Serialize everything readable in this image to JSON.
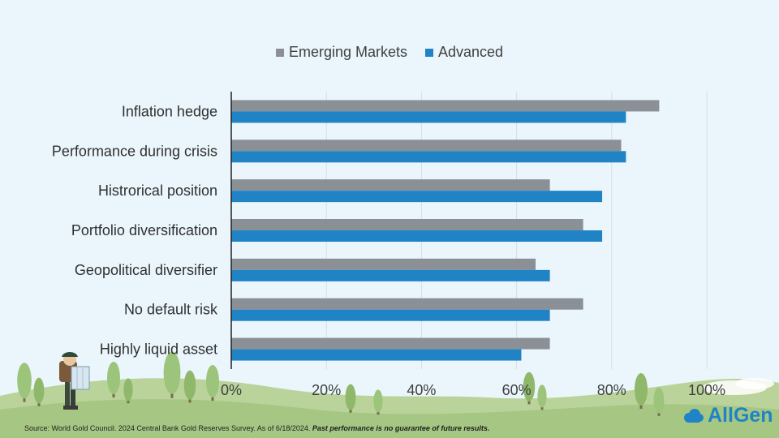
{
  "chart_data": {
    "type": "bar",
    "orientation": "horizontal",
    "categories": [
      "Inflation hedge",
      "Performance during crisis",
      "Histrorical position",
      "Portfolio diversification",
      "Geopolitical diversifier",
      "No default risk",
      "Highly liquid asset"
    ],
    "series": [
      {
        "name": "Emerging Markets",
        "color": "#8a9096",
        "values": [
          90,
          82,
          67,
          74,
          64,
          74,
          67
        ]
      },
      {
        "name": "Advanced",
        "color": "#1f83c6",
        "values": [
          83,
          83,
          78,
          78,
          67,
          67,
          61
        ]
      }
    ],
    "xlim": [
      0,
      100
    ],
    "x_ticks": [
      0,
      20,
      40,
      60,
      80,
      100
    ],
    "x_tick_labels": [
      "0%",
      "20%",
      "40%",
      "60%",
      "80%",
      "100%"
    ],
    "grid": true,
    "legend_position": "top-center"
  },
  "footer": {
    "source": "Source: World Gold Council. 2024 Central Bank Gold Reserves Survey. As of 6/18/2024.",
    "disclaimer": "Past performance is no guarantee of future results."
  },
  "brand": {
    "name": "AllGen",
    "logo_icon": "cloud-icon",
    "color": "#1f83c6"
  },
  "illustration": {
    "figure": "hiker-with-map-icon",
    "scenery": "trees-and-hills"
  }
}
